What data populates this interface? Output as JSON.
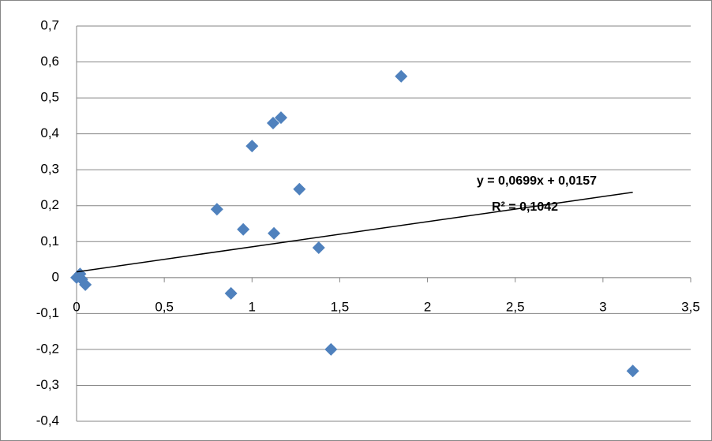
{
  "chart_data": {
    "type": "scatter",
    "x": [
      0,
      0.02,
      0.03,
      0.05,
      0.8,
      0.88,
      0.95,
      1.0,
      1.12,
      1.165,
      1.125,
      1.27,
      1.38,
      1.45,
      1.85,
      3.17
    ],
    "series": [
      {
        "color": "#4f81bd",
        "values": [
          0,
          0.01,
          -0.005,
          -0.02,
          0.19,
          -0.044,
          0.134,
          0.366,
          0.43,
          0.445,
          0.123,
          0.246,
          0.083,
          -0.2,
          0.56,
          -0.26
        ]
      }
    ],
    "xlim": [
      0,
      3.5
    ],
    "xticks": [
      0,
      {
        "value": 0.5,
        "label": "0,5"
      },
      1,
      {
        "value": 1.5,
        "label": "1,5"
      },
      2,
      {
        "value": 2.5,
        "label": "2,5"
      },
      3,
      {
        "value": 3.5,
        "label": "3,5"
      }
    ],
    "ylim": [
      -0.4,
      0.7
    ],
    "yticks": [
      {
        "value": -0.4,
        "label": "-0,4"
      },
      {
        "value": -0.3,
        "label": "-0,3"
      },
      {
        "value": -0.2,
        "label": "-0,2"
      },
      {
        "value": -0.1,
        "label": "-0,1"
      },
      0,
      {
        "value": 0.1,
        "label": "0,1"
      },
      {
        "value": 0.2,
        "label": "0,2"
      },
      {
        "value": 0.3,
        "label": "0,3"
      },
      {
        "value": 0.4,
        "label": "0,4"
      },
      {
        "value": 0.5,
        "label": "0,5"
      },
      {
        "value": 0.6,
        "label": "0,6"
      },
      {
        "value": 0.7,
        "label": "0,7"
      }
    ],
    "grid": true,
    "trendline": {
      "slope": 0.0699,
      "intercept": 0.0157,
      "equation": "y = 0,0699x + 0,0157",
      "r2_label": "R² = 0,1042"
    }
  }
}
